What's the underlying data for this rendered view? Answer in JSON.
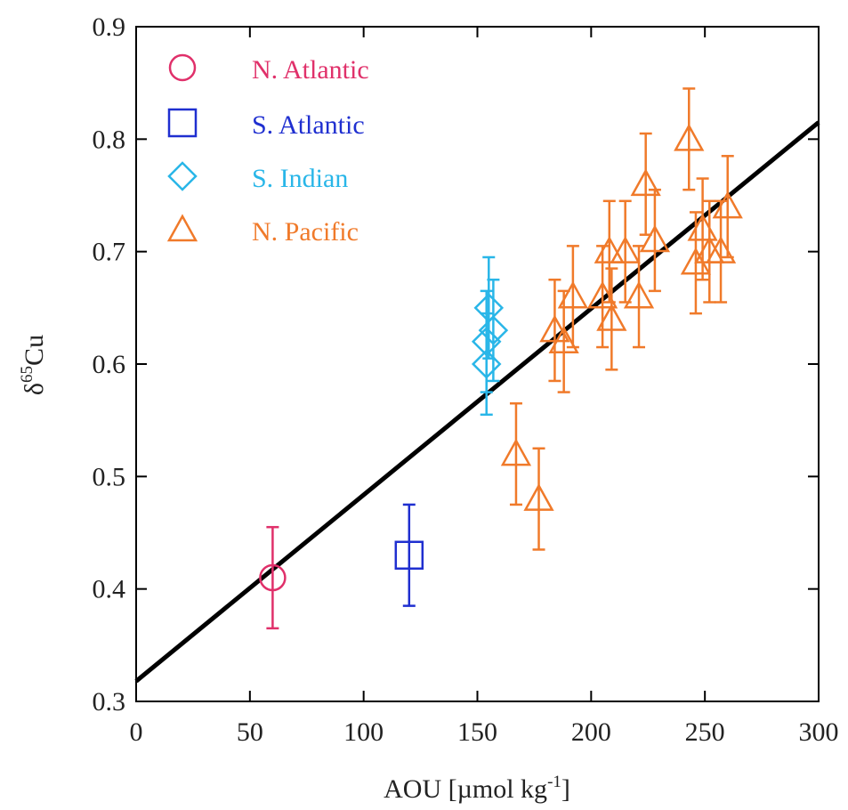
{
  "chart_data": {
    "type": "scatter",
    "xlabel": "AOU [µmol kg",
    "xlabel_sup": "-1",
    "xlabel_end": "]",
    "ylabel_prefix": "δ",
    "ylabel_sup": "65",
    "ylabel_main": "Cu",
    "xlim": [
      0,
      300
    ],
    "ylim": [
      0.3,
      0.9
    ],
    "xticks": [
      0,
      50,
      100,
      150,
      200,
      250,
      300
    ],
    "yticks": [
      0.3,
      0.4,
      0.5,
      0.6,
      0.7,
      0.8,
      0.9
    ],
    "xtick_labels": [
      "0",
      "50",
      "100",
      "150",
      "200",
      "250",
      "300"
    ],
    "ytick_labels": [
      "0.3",
      "0.4",
      "0.5",
      "0.6",
      "0.7",
      "0.8",
      "0.9"
    ],
    "legend_position": "top-left",
    "fit_line": {
      "x": [
        0,
        300
      ],
      "y": [
        0.318,
        0.815
      ],
      "color": "#000000"
    },
    "series": [
      {
        "name": "N. Atlantic",
        "marker": "circle",
        "color": "#e0306a",
        "points": [
          {
            "x": 60,
            "y": 0.41,
            "err": 0.045
          }
        ]
      },
      {
        "name": "S. Atlantic",
        "marker": "square",
        "color": "#1f2fd0",
        "points": [
          {
            "x": 120,
            "y": 0.43,
            "err": 0.045
          }
        ]
      },
      {
        "name": "S. Indian",
        "marker": "diamond",
        "color": "#29b6e8",
        "points": [
          {
            "x": 154,
            "y": 0.6,
            "err": 0.045
          },
          {
            "x": 154,
            "y": 0.62,
            "err": 0.045
          },
          {
            "x": 155,
            "y": 0.65,
            "err": 0.045
          },
          {
            "x": 157,
            "y": 0.63,
            "err": 0.045
          }
        ]
      },
      {
        "name": "N. Pacific",
        "marker": "triangle",
        "color": "#f07a2a",
        "points": [
          {
            "x": 167,
            "y": 0.52,
            "err": 0.045
          },
          {
            "x": 177,
            "y": 0.48,
            "err": 0.045
          },
          {
            "x": 184,
            "y": 0.63,
            "err": 0.045
          },
          {
            "x": 188,
            "y": 0.62,
            "err": 0.045
          },
          {
            "x": 192,
            "y": 0.66,
            "err": 0.045
          },
          {
            "x": 205,
            "y": 0.66,
            "err": 0.045
          },
          {
            "x": 208,
            "y": 0.7,
            "err": 0.045
          },
          {
            "x": 209,
            "y": 0.64,
            "err": 0.045
          },
          {
            "x": 215,
            "y": 0.7,
            "err": 0.045
          },
          {
            "x": 221,
            "y": 0.66,
            "err": 0.045
          },
          {
            "x": 224,
            "y": 0.76,
            "err": 0.045
          },
          {
            "x": 228,
            "y": 0.71,
            "err": 0.045
          },
          {
            "x": 243,
            "y": 0.8,
            "err": 0.045
          },
          {
            "x": 246,
            "y": 0.69,
            "err": 0.045
          },
          {
            "x": 249,
            "y": 0.72,
            "err": 0.045
          },
          {
            "x": 252,
            "y": 0.7,
            "err": 0.045
          },
          {
            "x": 257,
            "y": 0.7,
            "err": 0.045
          },
          {
            "x": 260,
            "y": 0.74,
            "err": 0.045
          }
        ]
      }
    ]
  }
}
